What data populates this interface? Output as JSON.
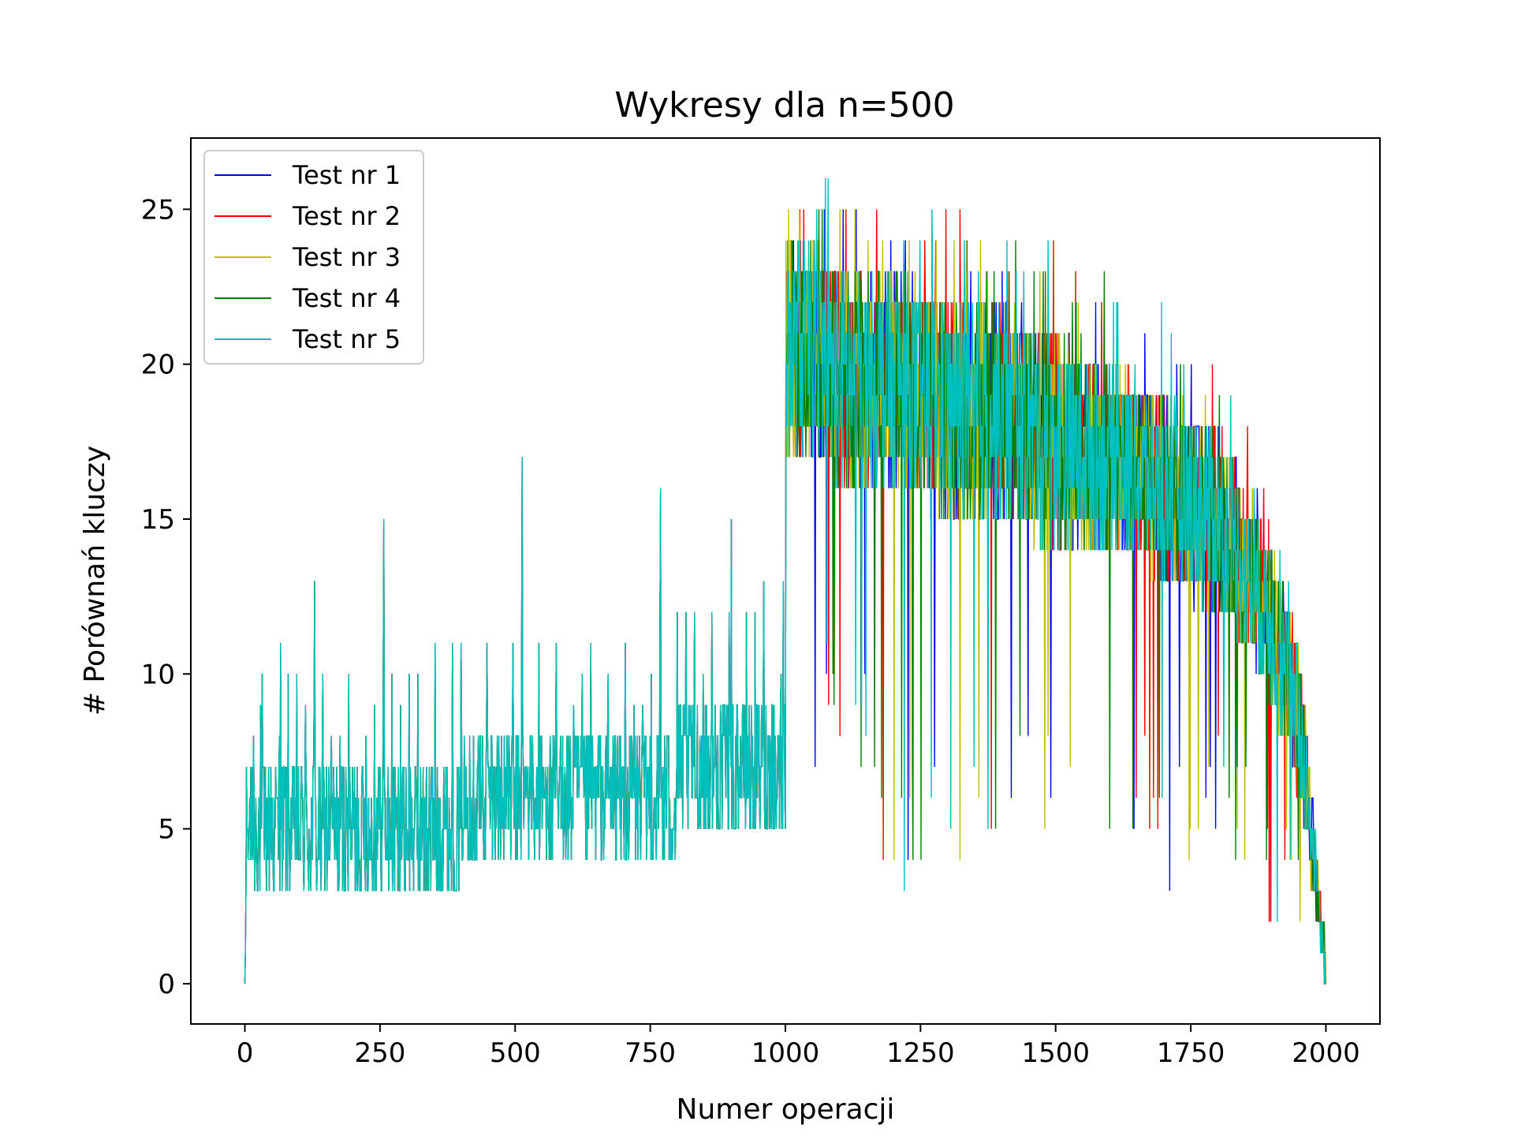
{
  "chart_data": {
    "type": "line",
    "title": "Wykresy dla n=500",
    "xlabel": "Numer operacji",
    "ylabel": "# Porównań kluczy",
    "xlim": [
      -100,
      2100
    ],
    "ylim": [
      -1.3,
      27.3
    ],
    "xticks": [
      0,
      250,
      500,
      750,
      1000,
      1250,
      1500,
      1750,
      2000
    ],
    "yticks": [
      0,
      5,
      10,
      15,
      20,
      25
    ],
    "grid": false,
    "legend_position": "top-left",
    "series": [
      {
        "name": "Test nr 1",
        "color": "#0000ff"
      },
      {
        "name": "Test nr 2",
        "color": "#ff0000"
      },
      {
        "name": "Test nr 3",
        "color": "#bfbf00"
      },
      {
        "name": "Test nr 4",
        "color": "#008000"
      },
      {
        "name": "Test nr 5",
        "color": "#00bfbf"
      }
    ],
    "shared_segment_description": "",
    "insert_phase": {
      "x_range": [
        0,
        1000
      ],
      "spikes": [
        [
          1,
          1
        ],
        [
          2,
          3
        ],
        [
          7,
          5
        ],
        [
          14,
          7
        ],
        [
          29,
          9
        ],
        [
          66,
          11
        ],
        [
          129,
          13
        ],
        [
          257,
          15
        ],
        [
          513,
          17
        ],
        [
          769,
          16
        ],
        [
          900,
          15
        ],
        [
          960,
          13
        ],
        [
          996,
          13
        ]
      ],
      "baseline_range_start": [
        2,
        7
      ],
      "baseline_range_end": [
        5,
        9
      ]
    },
    "delete_phase": {
      "x_range": [
        1000,
        2000
      ],
      "envelope_x": [
        1000,
        1050,
        1100,
        1200,
        1300,
        1400,
        1500,
        1600,
        1700,
        1800,
        1850,
        1900,
        1950,
        2000
      ],
      "envelope_max": [
        25,
        26,
        26,
        25,
        25,
        24,
        24,
        23,
        22,
        20,
        18,
        15,
        12,
        1
      ],
      "envelope_typ_high": [
        24,
        24,
        23,
        23,
        22,
        22,
        21,
        20,
        19,
        18,
        16,
        14,
        11,
        1
      ],
      "envelope_typ_low": [
        17,
        17,
        16,
        16,
        15,
        15,
        14,
        14,
        13,
        12,
        11,
        9,
        6,
        0
      ],
      "envelope_min": [
        6,
        7,
        8,
        3,
        4,
        4,
        4,
        5,
        3,
        4,
        4,
        2,
        1,
        0
      ]
    }
  }
}
